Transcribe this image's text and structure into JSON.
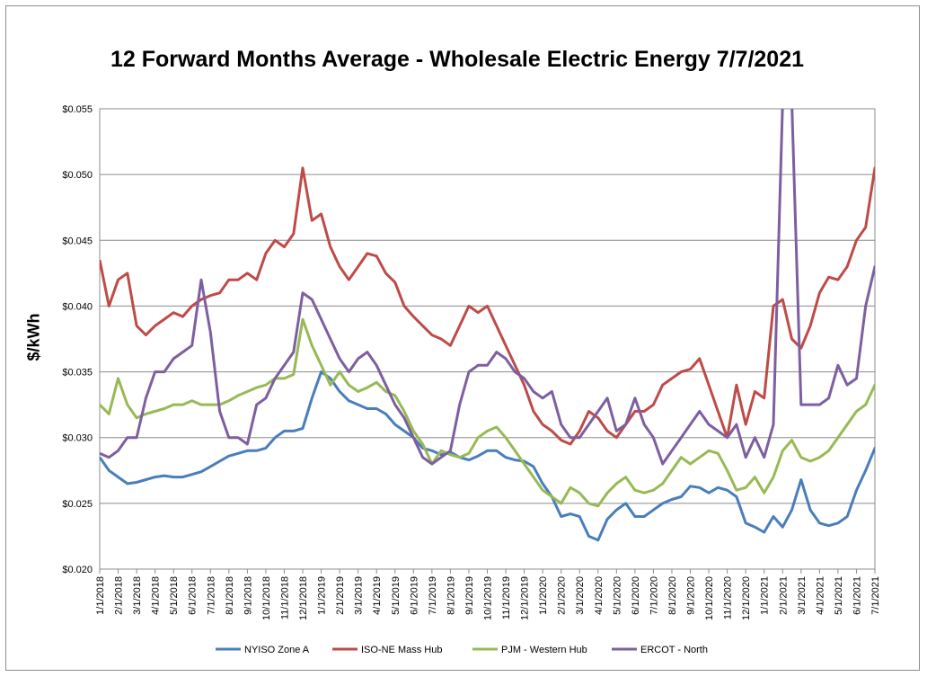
{
  "chart_data": {
    "type": "line",
    "title": "12 Forward Months Average - Wholesale Electric Energy 7/7/2021",
    "ylabel": "$/kWh",
    "xlabel": "",
    "ylim": [
      0.02,
      0.055
    ],
    "y_ticks": [
      "$0.020",
      "$0.025",
      "$0.030",
      "$0.035",
      "$0.040",
      "$0.045",
      "$0.050",
      "$0.055"
    ],
    "y_tick_values": [
      0.02,
      0.025,
      0.03,
      0.035,
      0.04,
      0.045,
      0.05,
      0.055
    ],
    "x_ticks": [
      "1/1/2018",
      "2/1/2018",
      "3/1/2018",
      "4/1/2018",
      "5/1/2018",
      "6/1/2018",
      "7/1/2018",
      "8/1/2018",
      "9/1/2018",
      "10/1/2018",
      "11/1/2018",
      "12/1/2018",
      "1/1/2019",
      "2/1/2019",
      "3/1/2019",
      "4/1/2019",
      "5/1/2019",
      "6/1/2019",
      "7/1/2019",
      "8/1/2019",
      "9/1/2019",
      "10/1/2019",
      "11/1/2019",
      "12/1/2019",
      "1/1/2020",
      "2/1/2020",
      "3/1/2020",
      "4/1/2020",
      "5/1/2020",
      "6/1/2020",
      "7/1/2020",
      "8/1/2020",
      "9/1/2020",
      "10/1/2020",
      "11/1/2020",
      "12/1/2020",
      "1/1/2021",
      "2/1/2021",
      "3/1/2021",
      "4/1/2021",
      "5/1/2021",
      "6/1/2021",
      "7/1/2021"
    ],
    "grid": true,
    "legend": "bottom",
    "x": [
      0,
      0.5,
      1,
      1.5,
      2,
      2.5,
      3,
      3.5,
      4,
      4.5,
      5,
      5.5,
      6,
      6.5,
      7,
      7.5,
      8,
      8.5,
      9,
      9.5,
      10,
      10.5,
      11,
      11.5,
      12,
      12.5,
      13,
      13.5,
      14,
      14.5,
      15,
      15.5,
      16,
      16.5,
      17,
      17.5,
      18,
      18.5,
      19,
      19.5,
      20,
      20.5,
      21,
      21.5,
      22,
      22.5,
      23,
      23.5,
      24,
      24.5,
      25,
      25.5,
      26,
      26.5,
      27,
      27.5,
      28,
      28.5,
      29,
      29.5,
      30,
      30.5,
      31,
      31.5,
      32,
      32.5,
      33,
      33.5,
      34,
      34.5,
      35,
      35.5,
      36,
      36.5,
      37,
      37.5,
      38,
      38.5,
      39,
      39.5,
      40,
      40.5,
      41,
      41.5,
      42,
      42.2
    ],
    "series": [
      {
        "name": "NYISO Zone A",
        "color": "#4a7ebb",
        "values": [
          0.0285,
          0.0275,
          0.027,
          0.0265,
          0.0266,
          0.0268,
          0.027,
          0.0271,
          0.027,
          0.027,
          0.0272,
          0.0274,
          0.0278,
          0.0282,
          0.0286,
          0.0288,
          0.029,
          0.029,
          0.0292,
          0.03,
          0.0305,
          0.0305,
          0.0307,
          0.033,
          0.035,
          0.0345,
          0.0335,
          0.0328,
          0.0325,
          0.0322,
          0.0322,
          0.0318,
          0.031,
          0.0305,
          0.03,
          0.0292,
          0.029,
          0.0287,
          0.0289,
          0.0285,
          0.0283,
          0.0286,
          0.029,
          0.029,
          0.0285,
          0.0283,
          0.0282,
          0.0278,
          0.0265,
          0.0255,
          0.024,
          0.0242,
          0.024,
          0.0225,
          0.0222,
          0.0238,
          0.0245,
          0.025,
          0.024,
          0.024,
          0.0245,
          0.025,
          0.0253,
          0.0255,
          0.0263,
          0.0262,
          0.0258,
          0.0262,
          0.026,
          0.0255,
          0.0235,
          0.0232,
          0.0228,
          0.024,
          0.0232,
          0.0245,
          0.0268,
          0.0245,
          0.0235,
          0.0233,
          0.0235,
          0.024,
          0.026,
          0.0275,
          0.0292,
          0.0285
        ]
      },
      {
        "name": "ISO-NE Mass Hub",
        "color": "#be4b48",
        "values": [
          0.0435,
          0.04,
          0.042,
          0.0425,
          0.0385,
          0.0378,
          0.0385,
          0.039,
          0.0395,
          0.0392,
          0.04,
          0.0405,
          0.0408,
          0.041,
          0.042,
          0.042,
          0.0425,
          0.042,
          0.044,
          0.045,
          0.0445,
          0.0455,
          0.0505,
          0.0465,
          0.047,
          0.0445,
          0.043,
          0.042,
          0.043,
          0.044,
          0.0438,
          0.0425,
          0.0418,
          0.04,
          0.0392,
          0.0385,
          0.0378,
          0.0375,
          0.037,
          0.0385,
          0.04,
          0.0395,
          0.04,
          0.0385,
          0.037,
          0.0355,
          0.034,
          0.032,
          0.031,
          0.0305,
          0.0298,
          0.0295,
          0.0305,
          0.032,
          0.0315,
          0.0305,
          0.03,
          0.031,
          0.032,
          0.032,
          0.0325,
          0.034,
          0.0345,
          0.035,
          0.0352,
          0.036,
          0.034,
          0.032,
          0.03,
          0.034,
          0.031,
          0.0335,
          0.033,
          0.04,
          0.0405,
          0.0375,
          0.0368,
          0.0385,
          0.041,
          0.0422,
          0.042,
          0.043,
          0.045,
          0.046,
          0.0505,
          0.049
        ]
      },
      {
        "name": "PJM - Western Hub",
        "color": "#98b954",
        "values": [
          0.0325,
          0.0318,
          0.0345,
          0.0325,
          0.0315,
          0.0318,
          0.032,
          0.0322,
          0.0325,
          0.0325,
          0.0328,
          0.0325,
          0.0325,
          0.0325,
          0.0328,
          0.0332,
          0.0335,
          0.0338,
          0.034,
          0.0345,
          0.0345,
          0.0348,
          0.039,
          0.037,
          0.0355,
          0.034,
          0.035,
          0.034,
          0.0335,
          0.0338,
          0.0342,
          0.0335,
          0.0332,
          0.032,
          0.0305,
          0.0295,
          0.028,
          0.029,
          0.0287,
          0.0285,
          0.0288,
          0.03,
          0.0305,
          0.0308,
          0.03,
          0.029,
          0.028,
          0.027,
          0.026,
          0.0255,
          0.025,
          0.0262,
          0.0258,
          0.025,
          0.0248,
          0.0258,
          0.0265,
          0.027,
          0.026,
          0.0258,
          0.026,
          0.0265,
          0.0275,
          0.0285,
          0.028,
          0.0285,
          0.029,
          0.0288,
          0.0275,
          0.026,
          0.0262,
          0.027,
          0.0258,
          0.027,
          0.029,
          0.0298,
          0.0285,
          0.0282,
          0.0285,
          0.029,
          0.03,
          0.031,
          0.032,
          0.0325,
          0.034,
          0.0345
        ]
      },
      {
        "name": "ERCOT - North",
        "color": "#7d5fa0",
        "values": [
          0.0288,
          0.0285,
          0.029,
          0.03,
          0.03,
          0.033,
          0.035,
          0.035,
          0.036,
          0.0365,
          0.037,
          0.042,
          0.038,
          0.032,
          0.03,
          0.03,
          0.0295,
          0.0325,
          0.033,
          0.0345,
          0.0355,
          0.0365,
          0.041,
          0.0405,
          0.039,
          0.0375,
          0.036,
          0.035,
          0.036,
          0.0365,
          0.0355,
          0.034,
          0.0325,
          0.0315,
          0.03,
          0.0285,
          0.028,
          0.0285,
          0.029,
          0.0325,
          0.035,
          0.0355,
          0.0355,
          0.0365,
          0.036,
          0.035,
          0.0345,
          0.0335,
          0.033,
          0.0335,
          0.031,
          0.03,
          0.03,
          0.031,
          0.032,
          0.033,
          0.0305,
          0.031,
          0.033,
          0.031,
          0.03,
          0.028,
          0.029,
          0.03,
          0.031,
          0.032,
          0.031,
          0.0305,
          0.03,
          0.031,
          0.0285,
          0.03,
          0.0285,
          0.031,
          0.0555,
          0.0555,
          0.0325,
          0.0325,
          0.0325,
          0.033,
          0.0355,
          0.034,
          0.0345,
          0.04,
          0.043,
          0.042
        ]
      }
    ]
  }
}
